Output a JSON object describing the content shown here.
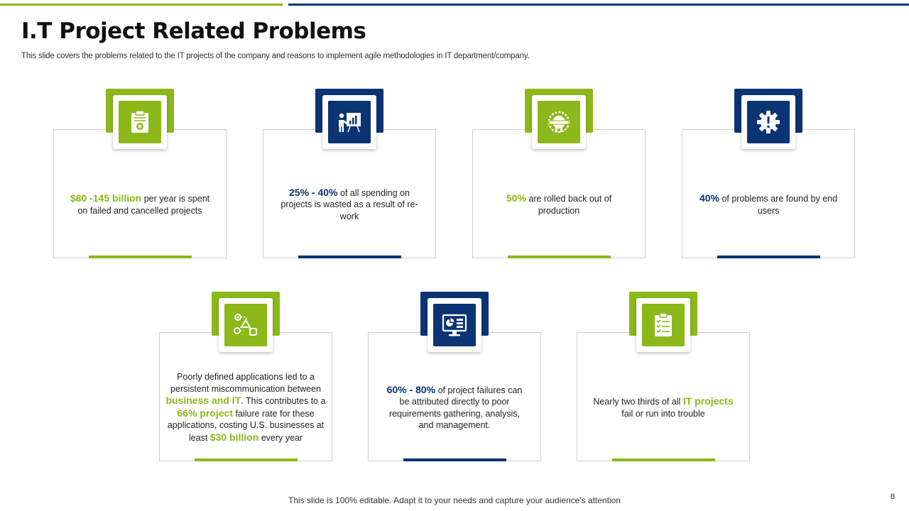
{
  "slide": {
    "title": "I.T Project Related Problems",
    "subtitle": "This slide covers the problems related to the IT projects of the company and reasons to implement agile methodologies in IT department/company.",
    "footer": "This slide is 100% editable. Adapt it to your needs and capture your audience's attention",
    "page_number": "8"
  },
  "colors": {
    "green": "#8cb81a",
    "navy": "#0a3474"
  },
  "cards": [
    {
      "icon": "clipboard-x-icon",
      "theme": "green",
      "hl1": "$80 -145 billion",
      "t1": " per year is spent on failed and cancelled projects"
    },
    {
      "icon": "presentation-chart-icon",
      "theme": "navy",
      "hl1": "25% - 40%",
      "t1": " of all spending on projects is wasted as a result of re-work"
    },
    {
      "icon": "badge-ribbon-icon",
      "theme": "green",
      "hl1": "50%",
      "t1": " are rolled back out of production"
    },
    {
      "icon": "gear-icon",
      "theme": "navy",
      "hl1": "40%",
      "t1": " of problems are found by end users"
    },
    {
      "icon": "workflow-icon",
      "theme": "green",
      "t0": "Poorly defined applications led to a persistent miscommunication between ",
      "hl1": "business and IT",
      "t1": ". This contributes to a ",
      "hl2": "66% project",
      "t2": " failure rate for these applications, costing U.S. businesses at least ",
      "hl3": "$30 billion",
      "t3": " every year"
    },
    {
      "icon": "monitor-dashboard-icon",
      "theme": "navy",
      "hl1": "60% - 80%",
      "t1": " of project failures can be attributed directly to poor requirements gathering, analysis, and management."
    },
    {
      "icon": "checklist-icon",
      "theme": "green",
      "t0": "Nearly two thirds of all ",
      "hl1": "IT projects",
      "t1": " fail or run into trouble"
    }
  ]
}
